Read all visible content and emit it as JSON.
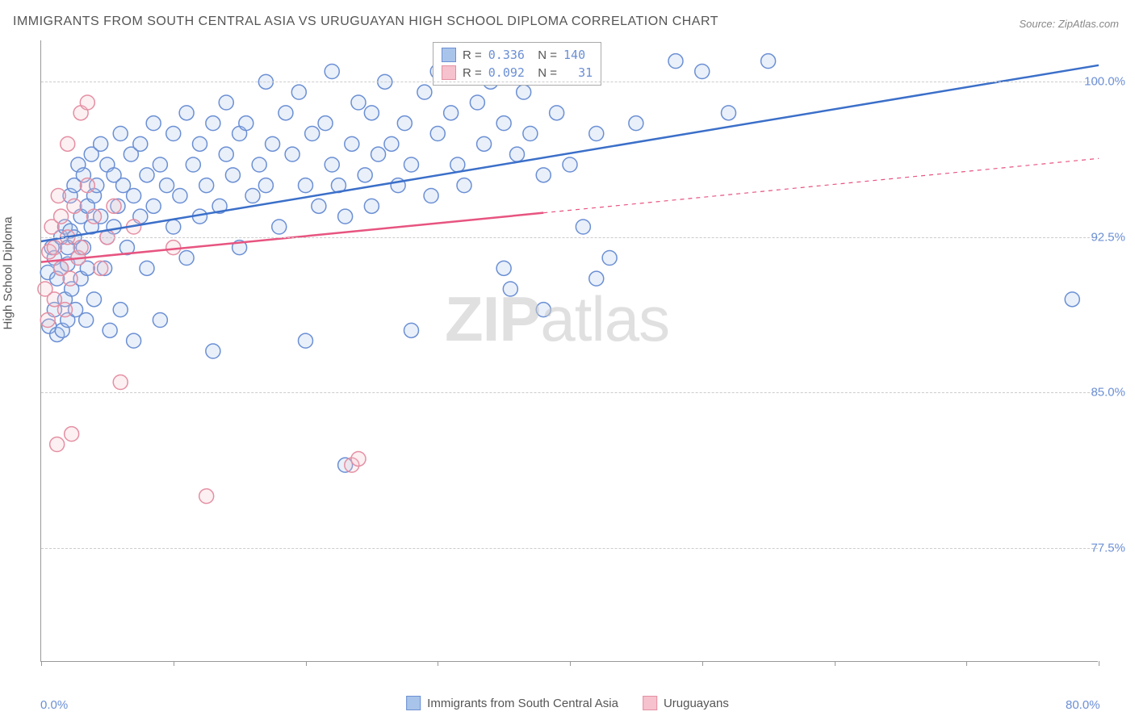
{
  "title": "IMMIGRANTS FROM SOUTH CENTRAL ASIA VS URUGUAYAN HIGH SCHOOL DIPLOMA CORRELATION CHART",
  "source": "Source: ZipAtlas.com",
  "watermark_a": "ZIP",
  "watermark_b": "atlas",
  "ylabel": "High School Diploma",
  "chart": {
    "type": "scatter",
    "background_color": "#ffffff",
    "grid_color": "#cccccc",
    "axis_color": "#999999",
    "xlim": [
      0,
      80
    ],
    "ylim": [
      72,
      102
    ],
    "x_ticks": [
      0,
      10,
      20,
      30,
      40,
      50,
      60,
      70,
      80
    ],
    "x_tick_labels": {
      "0": "0.0%",
      "80": "80.0%"
    },
    "y_ticks": [
      77.5,
      85.0,
      92.5,
      100.0
    ],
    "y_tick_labels": [
      "77.5%",
      "85.0%",
      "92.5%",
      "100.0%"
    ],
    "marker_radius": 9,
    "marker_stroke_width": 1.5,
    "marker_fill_opacity": 0.25,
    "line_width": 2.5,
    "series": [
      {
        "name": "Immigrants from South Central Asia",
        "color_fill": "#a9c4ea",
        "color_stroke": "#6b8fd4",
        "line_color": "#3b6fc9",
        "R": "0.336",
        "N": "140",
        "trend": {
          "x1": 0,
          "y1": 92.3,
          "x2": 80,
          "y2": 100.8,
          "solid_to_x": 80
        },
        "points": [
          [
            0.5,
            90.8
          ],
          [
            0.6,
            88.2
          ],
          [
            0.8,
            92.0
          ],
          [
            1.0,
            91.5
          ],
          [
            1.0,
            89.0
          ],
          [
            1.2,
            90.5
          ],
          [
            1.2,
            87.8
          ],
          [
            1.5,
            92.5
          ],
          [
            1.5,
            91.0
          ],
          [
            1.6,
            88.0
          ],
          [
            1.8,
            93.0
          ],
          [
            1.8,
            89.5
          ],
          [
            2.0,
            92.0
          ],
          [
            2.0,
            91.2
          ],
          [
            2.0,
            88.5
          ],
          [
            2.2,
            94.5
          ],
          [
            2.2,
            92.8
          ],
          [
            2.3,
            90.0
          ],
          [
            2.5,
            95.0
          ],
          [
            2.5,
            92.5
          ],
          [
            2.6,
            89.0
          ],
          [
            2.8,
            96.0
          ],
          [
            2.8,
            91.5
          ],
          [
            3.0,
            93.5
          ],
          [
            3.0,
            90.5
          ],
          [
            3.2,
            95.5
          ],
          [
            3.2,
            92.0
          ],
          [
            3.4,
            88.5
          ],
          [
            3.5,
            94.0
          ],
          [
            3.5,
            91.0
          ],
          [
            3.8,
            96.5
          ],
          [
            3.8,
            93.0
          ],
          [
            4.0,
            94.5
          ],
          [
            4.0,
            89.5
          ],
          [
            4.2,
            95.0
          ],
          [
            4.5,
            97.0
          ],
          [
            4.5,
            93.5
          ],
          [
            4.8,
            91.0
          ],
          [
            5.0,
            96.0
          ],
          [
            5.0,
            92.5
          ],
          [
            5.2,
            88.0
          ],
          [
            5.5,
            95.5
          ],
          [
            5.5,
            93.0
          ],
          [
            5.8,
            94.0
          ],
          [
            6.0,
            97.5
          ],
          [
            6.0,
            89.0
          ],
          [
            6.2,
            95.0
          ],
          [
            6.5,
            92.0
          ],
          [
            6.8,
            96.5
          ],
          [
            7.0,
            94.5
          ],
          [
            7.0,
            87.5
          ],
          [
            7.5,
            97.0
          ],
          [
            7.5,
            93.5
          ],
          [
            8.0,
            95.5
          ],
          [
            8.0,
            91.0
          ],
          [
            8.5,
            98.0
          ],
          [
            8.5,
            94.0
          ],
          [
            9.0,
            96.0
          ],
          [
            9.0,
            88.5
          ],
          [
            9.5,
            95.0
          ],
          [
            10.0,
            97.5
          ],
          [
            10.0,
            93.0
          ],
          [
            10.5,
            94.5
          ],
          [
            11.0,
            98.5
          ],
          [
            11.0,
            91.5
          ],
          [
            11.5,
            96.0
          ],
          [
            12.0,
            97.0
          ],
          [
            12.0,
            93.5
          ],
          [
            12.5,
            95.0
          ],
          [
            13.0,
            98.0
          ],
          [
            13.0,
            87.0
          ],
          [
            13.5,
            94.0
          ],
          [
            14.0,
            96.5
          ],
          [
            14.0,
            99.0
          ],
          [
            14.5,
            95.5
          ],
          [
            15.0,
            97.5
          ],
          [
            15.0,
            92.0
          ],
          [
            15.5,
            98.0
          ],
          [
            16.0,
            94.5
          ],
          [
            16.5,
            96.0
          ],
          [
            17.0,
            100.0
          ],
          [
            17.0,
            95.0
          ],
          [
            17.5,
            97.0
          ],
          [
            18.0,
            93.0
          ],
          [
            18.5,
            98.5
          ],
          [
            19.0,
            96.5
          ],
          [
            19.5,
            99.5
          ],
          [
            20.0,
            95.0
          ],
          [
            20.0,
            87.5
          ],
          [
            20.5,
            97.5
          ],
          [
            21.0,
            94.0
          ],
          [
            21.5,
            98.0
          ],
          [
            22.0,
            100.5
          ],
          [
            22.0,
            96.0
          ],
          [
            22.5,
            95.0
          ],
          [
            23.0,
            93.5
          ],
          [
            23.0,
            81.5
          ],
          [
            23.5,
            97.0
          ],
          [
            24.0,
            99.0
          ],
          [
            24.5,
            95.5
          ],
          [
            25.0,
            98.5
          ],
          [
            25.0,
            94.0
          ],
          [
            25.5,
            96.5
          ],
          [
            26.0,
            100.0
          ],
          [
            26.5,
            97.0
          ],
          [
            27.0,
            95.0
          ],
          [
            27.5,
            98.0
          ],
          [
            28.0,
            88.0
          ],
          [
            28.0,
            96.0
          ],
          [
            29.0,
            99.5
          ],
          [
            29.5,
            94.5
          ],
          [
            30.0,
            100.5
          ],
          [
            30.0,
            97.5
          ],
          [
            31.0,
            98.5
          ],
          [
            31.5,
            96.0
          ],
          [
            32.0,
            101.0
          ],
          [
            32.0,
            95.0
          ],
          [
            33.0,
            99.0
          ],
          [
            33.5,
            97.0
          ],
          [
            34.0,
            100.0
          ],
          [
            35.0,
            98.0
          ],
          [
            35.0,
            91.0
          ],
          [
            35.5,
            90.0
          ],
          [
            36.0,
            96.5
          ],
          [
            36.5,
            99.5
          ],
          [
            37.0,
            97.5
          ],
          [
            38.0,
            95.5
          ],
          [
            38.0,
            89.0
          ],
          [
            39.0,
            98.5
          ],
          [
            40.0,
            96.0
          ],
          [
            41.0,
            93.0
          ],
          [
            42.0,
            97.5
          ],
          [
            42.0,
            90.5
          ],
          [
            43.0,
            91.5
          ],
          [
            45.0,
            98.0
          ],
          [
            48.0,
            101.0
          ],
          [
            50.0,
            100.5
          ],
          [
            52.0,
            98.5
          ],
          [
            55.0,
            101.0
          ],
          [
            78.0,
            89.5
          ]
        ]
      },
      {
        "name": "Uruguayans",
        "color_fill": "#f5c2cd",
        "color_stroke": "#e58fa3",
        "line_color": "#e75480",
        "R": "0.092",
        "N": "31",
        "trend": {
          "x1": 0,
          "y1": 91.3,
          "x2": 80,
          "y2": 96.3,
          "solid_to_x": 38
        },
        "points": [
          [
            0.3,
            90.0
          ],
          [
            0.5,
            88.5
          ],
          [
            0.6,
            91.8
          ],
          [
            0.8,
            93.0
          ],
          [
            1.0,
            89.5
          ],
          [
            1.0,
            92.0
          ],
          [
            1.2,
            82.5
          ],
          [
            1.3,
            94.5
          ],
          [
            1.5,
            91.0
          ],
          [
            1.5,
            93.5
          ],
          [
            1.8,
            89.0
          ],
          [
            2.0,
            92.5
          ],
          [
            2.0,
            97.0
          ],
          [
            2.2,
            90.5
          ],
          [
            2.3,
            83.0
          ],
          [
            2.5,
            94.0
          ],
          [
            2.8,
            91.5
          ],
          [
            3.0,
            98.5
          ],
          [
            3.0,
            92.0
          ],
          [
            3.5,
            95.0
          ],
          [
            3.5,
            99.0
          ],
          [
            4.0,
            93.5
          ],
          [
            4.5,
            91.0
          ],
          [
            5.0,
            92.5
          ],
          [
            5.5,
            94.0
          ],
          [
            6.0,
            85.5
          ],
          [
            7.0,
            93.0
          ],
          [
            10.0,
            92.0
          ],
          [
            12.5,
            80.0
          ],
          [
            23.5,
            81.5
          ],
          [
            24.0,
            81.8
          ]
        ]
      }
    ]
  },
  "legend_bottom": [
    {
      "label": "Immigrants from South Central Asia",
      "fill": "#a9c4ea",
      "stroke": "#6b8fd4"
    },
    {
      "label": "Uruguayans",
      "fill": "#f5c2cd",
      "stroke": "#e58fa3"
    }
  ]
}
